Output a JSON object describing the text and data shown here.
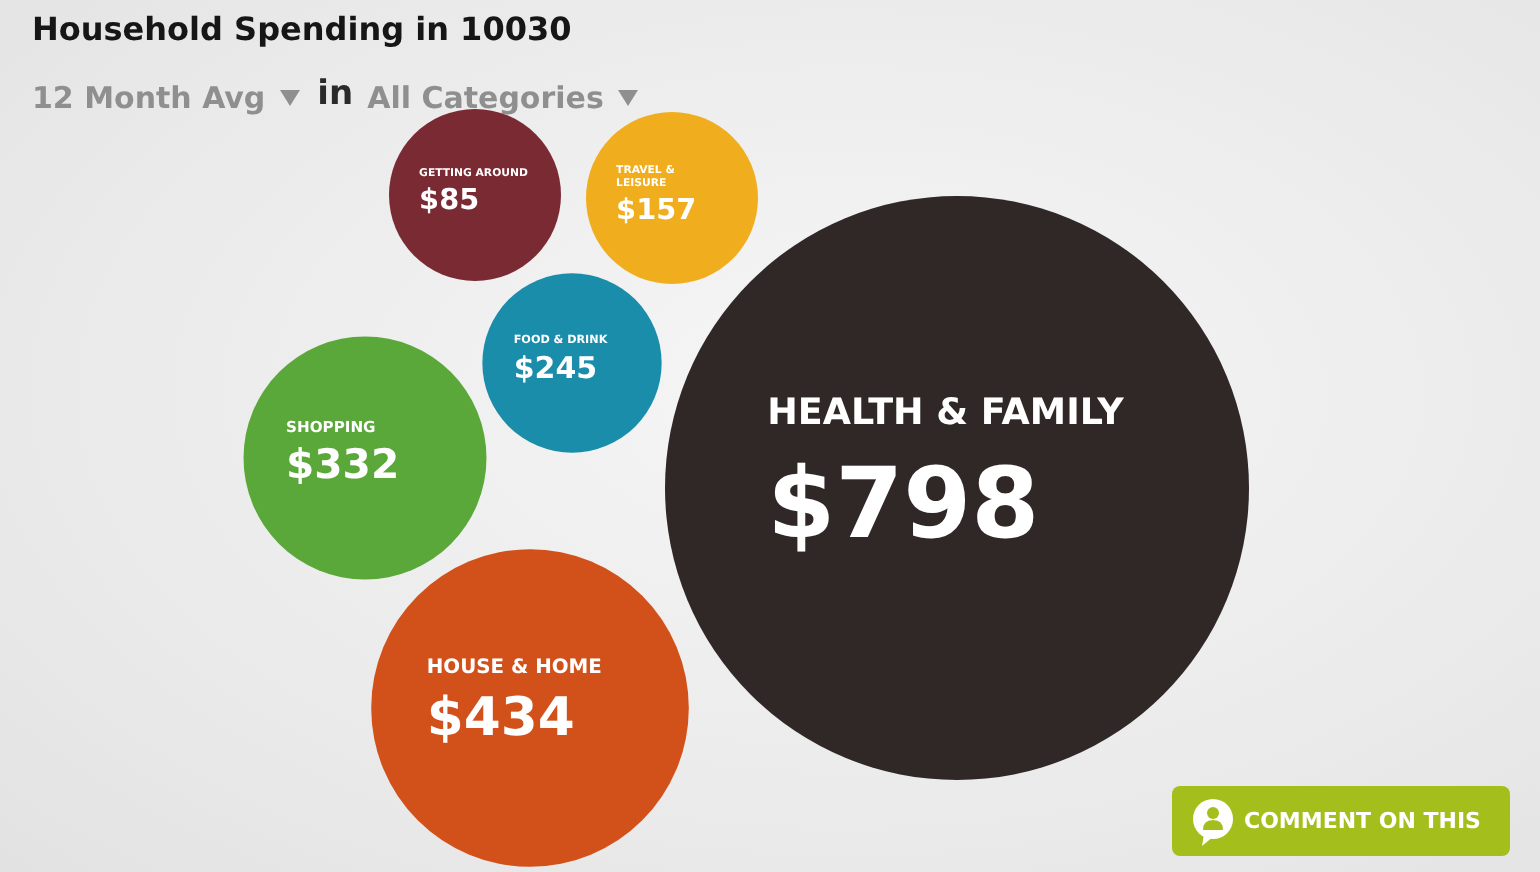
{
  "chart_data": {
    "type": "other",
    "title": "Household Spending in 10030",
    "categories": [
      "GETTING AROUND",
      "TRAVEL & LEISURE",
      "FOOD & DRINK",
      "SHOPPING",
      "HOUSE & HOME",
      "HEALTH & FAMILY"
    ],
    "values": [
      85,
      157,
      245,
      332,
      434,
      798
    ],
    "value_labels": [
      "$85",
      "$157",
      "$245",
      "$332",
      "$434",
      "$798"
    ],
    "colors": [
      "#7a2a33",
      "#f0ae1e",
      "#1a8dab",
      "#5aa83a",
      "#d2501a",
      "#2f2826"
    ],
    "annotations": [
      "12 Month Avg",
      "in",
      "All Categories",
      "COMMENT ON THIS"
    ]
  }
}
